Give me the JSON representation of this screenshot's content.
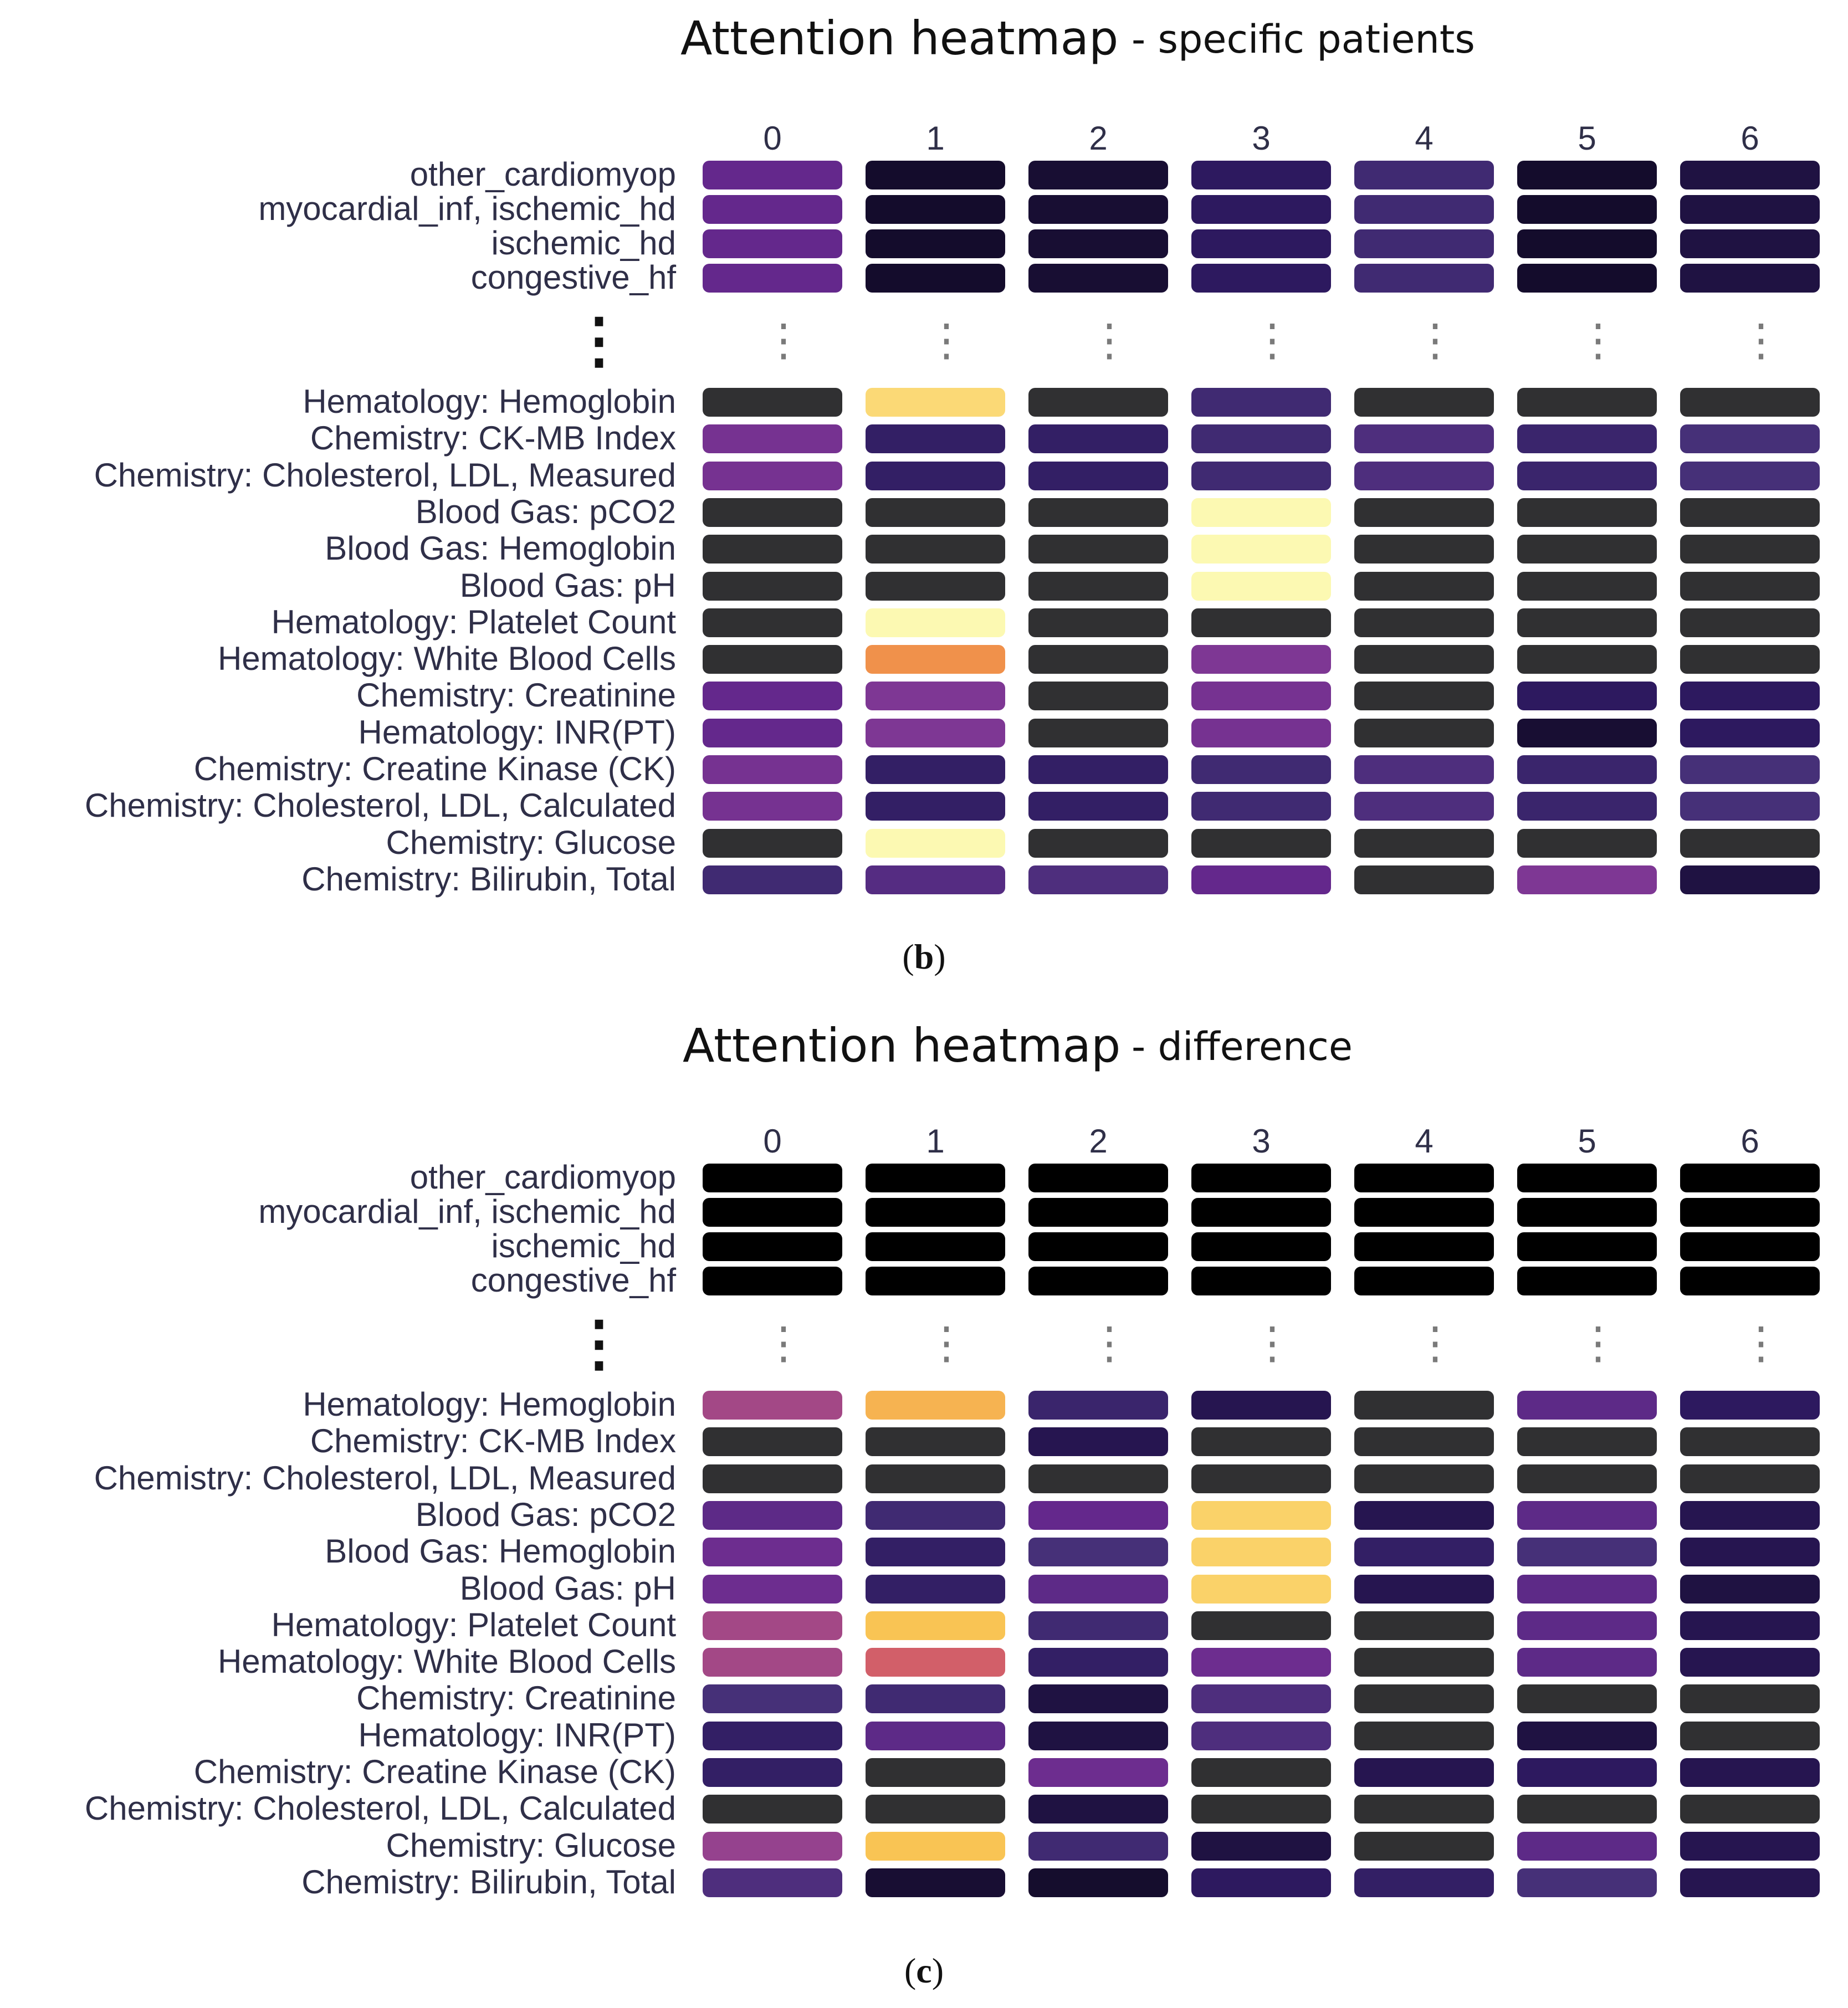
{
  "chart_data": [
    {
      "type": "heatmap",
      "title": "Attention heatmap",
      "subtitle": "- specific patients",
      "caption_letter": "b",
      "columns": [
        "0",
        "1",
        "2",
        "3",
        "4",
        "5",
        "6"
      ],
      "top_rows": [
        "other_cardiomyop",
        "myocardial_inf, ischemic_hd",
        "ischemic_hd",
        "congestive_hf"
      ],
      "top_values": [
        [
          0.28,
          0.05,
          0.06,
          0.12,
          0.18,
          0.05,
          0.08
        ],
        [
          0.28,
          0.05,
          0.06,
          0.12,
          0.18,
          0.05,
          0.08
        ],
        [
          0.28,
          0.05,
          0.06,
          0.12,
          0.18,
          0.05,
          0.08
        ],
        [
          0.28,
          0.05,
          0.06,
          0.12,
          0.18,
          0.05,
          0.08
        ]
      ],
      "ellipsis": "⋮",
      "bottom_rows": [
        "Hematology: Hemoglobin",
        "Chemistry: CK-MB Index",
        "Chemistry: Cholesterol, LDL, Measured",
        "Blood Gas: pCO2",
        "Blood Gas: Hemoglobin",
        "Blood Gas: pH",
        "Hematology: Platelet Count",
        "Hematology: White Blood Cells",
        "Chemistry: Creatinine",
        "Hematology: INR(PT)",
        "Chemistry: Creatine Kinase (CK)",
        "Chemistry: Cholesterol, LDL, Calculated",
        "Chemistry: Glucose",
        "Chemistry: Bilirubin, Total"
      ],
      "bottom_values": [
        [
          0.0,
          0.9,
          0.0,
          0.18,
          0.0,
          0.0,
          0.0
        ],
        [
          0.32,
          0.14,
          0.14,
          0.18,
          0.22,
          0.16,
          0.2
        ],
        [
          0.32,
          0.14,
          0.14,
          0.18,
          0.22,
          0.16,
          0.2
        ],
        [
          0.0,
          0.0,
          0.0,
          0.99,
          0.0,
          0.0,
          0.0
        ],
        [
          0.0,
          0.0,
          0.0,
          0.99,
          0.0,
          0.0,
          0.0
        ],
        [
          0.0,
          0.0,
          0.0,
          0.99,
          0.0,
          0.0,
          0.0
        ],
        [
          0.0,
          0.99,
          0.0,
          0.0,
          0.0,
          0.0,
          0.0
        ],
        [
          0.0,
          0.72,
          0.0,
          0.34,
          0.0,
          0.0,
          0.0
        ],
        [
          0.28,
          0.34,
          0.0,
          0.32,
          0.0,
          0.12,
          0.12
        ],
        [
          0.28,
          0.34,
          0.0,
          0.32,
          0.0,
          0.06,
          0.12
        ],
        [
          0.32,
          0.14,
          0.14,
          0.18,
          0.22,
          0.16,
          0.2
        ],
        [
          0.32,
          0.14,
          0.14,
          0.18,
          0.22,
          0.16,
          0.2
        ],
        [
          0.0,
          0.99,
          0.0,
          0.0,
          0.0,
          0.0,
          0.0
        ],
        [
          0.18,
          0.24,
          0.22,
          0.28,
          0.0,
          0.34,
          0.08
        ]
      ]
    },
    {
      "type": "heatmap",
      "title": "Attention heatmap",
      "subtitle": "- difference",
      "caption_letter": "c",
      "columns": [
        "0",
        "1",
        "2",
        "3",
        "4",
        "5",
        "6"
      ],
      "top_rows": [
        "other_cardiomyop",
        "myocardial_inf, ischemic_hd",
        "ischemic_hd",
        "congestive_hf"
      ],
      "top_values": [
        [
          -1,
          -1,
          -1,
          -1,
          -1,
          -1,
          -1
        ],
        [
          -1,
          -1,
          -1,
          -1,
          -1,
          -1,
          -1
        ],
        [
          -1,
          -1,
          -1,
          -1,
          -1,
          -1,
          -1
        ],
        [
          -1,
          -1,
          -1,
          -1,
          -1,
          -1,
          -1
        ]
      ],
      "ellipsis": "⋮",
      "bottom_rows": [
        "Hematology: Hemoglobin",
        "Chemistry: CK-MB Index",
        "Chemistry: Cholesterol, LDL, Measured",
        "Blood Gas: pCO2",
        "Blood Gas: Hemoglobin",
        "Blood Gas: pH",
        "Hematology: Platelet Count",
        "Hematology: White Blood Cells",
        "Chemistry: Creatinine",
        "Hematology: INR(PT)",
        "Chemistry: Creatine Kinase (CK)",
        "Chemistry: Cholesterol, LDL, Calculated",
        "Chemistry: Glucose",
        "Chemistry: Bilirubin, Total"
      ],
      "bottom_values": [
        [
          0.44,
          0.8,
          0.16,
          0.1,
          0.0,
          0.26,
          0.12
        ],
        [
          0.0,
          0.0,
          0.1,
          0.0,
          0.0,
          0.0,
          0.0
        ],
        [
          0.0,
          0.0,
          0.0,
          0.0,
          0.0,
          0.0,
          0.0
        ],
        [
          0.26,
          0.18,
          0.28,
          0.88,
          0.1,
          0.26,
          0.1
        ],
        [
          0.3,
          0.14,
          0.2,
          0.88,
          0.14,
          0.2,
          0.1
        ],
        [
          0.3,
          0.14,
          0.26,
          0.88,
          0.1,
          0.26,
          0.08
        ],
        [
          0.44,
          0.84,
          0.18,
          0.0,
          0.0,
          0.26,
          0.1
        ],
        [
          0.44,
          0.58,
          0.14,
          0.3,
          0.0,
          0.26,
          0.1
        ],
        [
          0.2,
          0.18,
          0.08,
          0.22,
          0.0,
          0.0,
          0.0
        ],
        [
          0.14,
          0.26,
          0.08,
          0.22,
          0.0,
          0.08,
          0.0
        ],
        [
          0.14,
          0.0,
          0.3,
          0.0,
          0.1,
          0.12,
          0.1
        ],
        [
          0.0,
          0.0,
          0.08,
          0.0,
          0.0,
          0.0,
          0.0
        ],
        [
          0.4,
          0.84,
          0.18,
          0.08,
          0.0,
          0.26,
          0.1
        ],
        [
          0.22,
          0.06,
          0.04,
          0.12,
          0.14,
          0.2,
          0.1
        ]
      ]
    }
  ]
}
